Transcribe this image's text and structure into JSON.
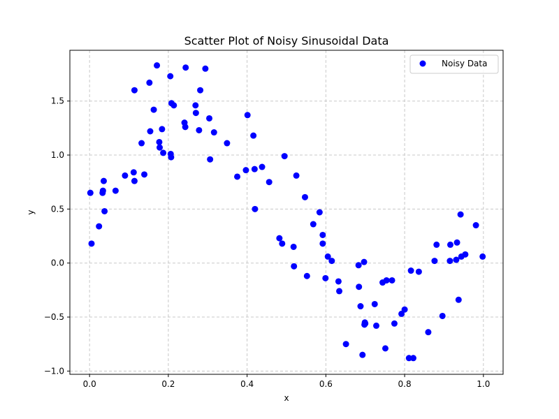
{
  "chart_data": {
    "type": "scatter",
    "title": "Scatter Plot of Noisy Sinusoidal Data",
    "xlabel": "x",
    "ylabel": "y",
    "xlim": [
      -0.05,
      1.05
    ],
    "ylim": [
      -1.03,
      1.97
    ],
    "x_ticks": [
      0.0,
      0.2,
      0.4,
      0.6,
      0.8,
      1.0
    ],
    "x_tick_labels": [
      "0.0",
      "0.2",
      "0.4",
      "0.6",
      "0.8",
      "1.0"
    ],
    "y_ticks": [
      -1.0,
      -0.5,
      0.0,
      0.5,
      1.0,
      1.5
    ],
    "y_tick_labels": [
      "−1.0",
      "−0.5",
      "0.0",
      "0.5",
      "1.0",
      "1.5"
    ],
    "grid": true,
    "legend": {
      "position": "top-right",
      "entries": [
        "Noisy Data"
      ]
    },
    "series": [
      {
        "name": "Noisy Data",
        "color": "#0000ff",
        "points": [
          [
            0.002,
            0.65
          ],
          [
            0.005,
            0.18
          ],
          [
            0.024,
            0.34
          ],
          [
            0.033,
            0.65
          ],
          [
            0.034,
            0.67
          ],
          [
            0.036,
            0.76
          ],
          [
            0.038,
            0.48
          ],
          [
            0.066,
            0.67
          ],
          [
            0.09,
            0.81
          ],
          [
            0.112,
            0.84
          ],
          [
            0.114,
            1.6
          ],
          [
            0.114,
            0.76
          ],
          [
            0.132,
            1.11
          ],
          [
            0.139,
            0.82
          ],
          [
            0.152,
            1.67
          ],
          [
            0.154,
            1.22
          ],
          [
            0.163,
            1.42
          ],
          [
            0.171,
            1.83
          ],
          [
            0.177,
            1.12
          ],
          [
            0.178,
            1.07
          ],
          [
            0.184,
            1.24
          ],
          [
            0.187,
            1.02
          ],
          [
            0.205,
            1.73
          ],
          [
            0.206,
            1.01
          ],
          [
            0.207,
            0.98
          ],
          [
            0.208,
            1.48
          ],
          [
            0.214,
            1.46
          ],
          [
            0.241,
            1.3
          ],
          [
            0.243,
            1.26
          ],
          [
            0.244,
            1.81
          ],
          [
            0.269,
            1.46
          ],
          [
            0.27,
            1.39
          ],
          [
            0.278,
            1.23
          ],
          [
            0.281,
            1.6
          ],
          [
            0.294,
            1.8
          ],
          [
            0.304,
            1.34
          ],
          [
            0.306,
            0.96
          ],
          [
            0.316,
            1.21
          ],
          [
            0.349,
            1.11
          ],
          [
            0.375,
            0.8
          ],
          [
            0.397,
            0.86
          ],
          [
            0.401,
            1.37
          ],
          [
            0.416,
            1.18
          ],
          [
            0.419,
            0.87
          ],
          [
            0.42,
            0.5
          ],
          [
            0.438,
            0.89
          ],
          [
            0.456,
            0.75
          ],
          [
            0.482,
            0.23
          ],
          [
            0.489,
            0.18
          ],
          [
            0.495,
            0.99
          ],
          [
            0.518,
            0.15
          ],
          [
            0.519,
            -0.03
          ],
          [
            0.525,
            0.81
          ],
          [
            0.547,
            0.61
          ],
          [
            0.552,
            -0.12
          ],
          [
            0.568,
            0.36
          ],
          [
            0.584,
            0.47
          ],
          [
            0.592,
            0.26
          ],
          [
            0.592,
            0.18
          ],
          [
            0.599,
            -0.14
          ],
          [
            0.605,
            0.06
          ],
          [
            0.615,
            0.02
          ],
          [
            0.632,
            -0.17
          ],
          [
            0.634,
            -0.26
          ],
          [
            0.651,
            -0.75
          ],
          [
            0.683,
            -0.02
          ],
          [
            0.684,
            -0.22
          ],
          [
            0.688,
            -0.4
          ],
          [
            0.693,
            -0.85
          ],
          [
            0.697,
            0.01
          ],
          [
            0.698,
            -0.57
          ],
          [
            0.699,
            -0.55
          ],
          [
            0.7,
            -0.56
          ],
          [
            0.724,
            -0.38
          ],
          [
            0.728,
            -0.58
          ],
          [
            0.744,
            -0.18
          ],
          [
            0.751,
            -0.79
          ],
          [
            0.754,
            -0.16
          ],
          [
            0.768,
            -0.16
          ],
          [
            0.774,
            -0.56
          ],
          [
            0.792,
            -0.47
          ],
          [
            0.8,
            -0.43
          ],
          [
            0.811,
            -0.88
          ],
          [
            0.816,
            -0.07
          ],
          [
            0.822,
            -0.88
          ],
          [
            0.836,
            -0.08
          ],
          [
            0.86,
            -0.64
          ],
          [
            0.876,
            0.02
          ],
          [
            0.881,
            0.17
          ],
          [
            0.896,
            -0.49
          ],
          [
            0.915,
            0.02
          ],
          [
            0.916,
            0.17
          ],
          [
            0.931,
            0.03
          ],
          [
            0.933,
            0.19
          ],
          [
            0.937,
            -0.34
          ],
          [
            0.942,
            0.45
          ],
          [
            0.944,
            0.06
          ],
          [
            0.954,
            0.08
          ],
          [
            0.981,
            0.35
          ],
          [
            0.998,
            0.06
          ]
        ]
      }
    ]
  }
}
